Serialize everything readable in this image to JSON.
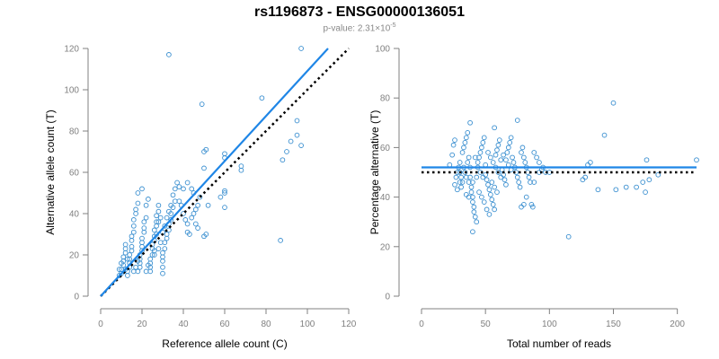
{
  "title": "rs1196873 - ENSG00000136051",
  "subtitle": {
    "prefix": "p-value: 2.31×10",
    "exponent": "-5"
  },
  "colors": {
    "points": "#3a8fd0",
    "fit_line": "#1f86e6",
    "reference_line": "#000000",
    "axes": "#808080"
  },
  "chart_data": [
    {
      "type": "scatter",
      "xlabel": "Reference allele count (C)",
      "ylabel": "Alternative allele count (T)",
      "xlim": [
        0,
        120
      ],
      "ylim": [
        0,
        120
      ],
      "xticks": [
        0,
        20,
        40,
        60,
        80,
        100,
        120
      ],
      "yticks": [
        0,
        20,
        40,
        60,
        80,
        100,
        120
      ],
      "grid": false,
      "fit_line": {
        "x": [
          0,
          110
        ],
        "y": [
          0,
          120
        ]
      },
      "reference_line": {
        "x": [
          0,
          120
        ],
        "y": [
          0,
          120
        ]
      },
      "points": [
        [
          33,
          117
        ],
        [
          97,
          120
        ],
        [
          95,
          85
        ],
        [
          95,
          78
        ],
        [
          97,
          73
        ],
        [
          92,
          75
        ],
        [
          88,
          66
        ],
        [
          90,
          70
        ],
        [
          78,
          96
        ],
        [
          87,
          27
        ],
        [
          49,
          93
        ],
        [
          50,
          70
        ],
        [
          51,
          71
        ],
        [
          50,
          62
        ],
        [
          51,
          30
        ],
        [
          50,
          29
        ],
        [
          52,
          44
        ],
        [
          60,
          51
        ],
        [
          60,
          50
        ],
        [
          58,
          48
        ],
        [
          60,
          43
        ],
        [
          68,
          63
        ],
        [
          68,
          61
        ],
        [
          60,
          67
        ],
        [
          60,
          69
        ],
        [
          45,
          40
        ],
        [
          46,
          42
        ],
        [
          47,
          44
        ],
        [
          48,
          48
        ],
        [
          44,
          52
        ],
        [
          45,
          50
        ],
        [
          42,
          55
        ],
        [
          40,
          52
        ],
        [
          38,
          53
        ],
        [
          38,
          46
        ],
        [
          39,
          44
        ],
        [
          40,
          40
        ],
        [
          41,
          37
        ],
        [
          42,
          35
        ],
        [
          42,
          31
        ],
        [
          43,
          30
        ],
        [
          44,
          38
        ],
        [
          46,
          35
        ],
        [
          47,
          33
        ],
        [
          36,
          46
        ],
        [
          35,
          43
        ],
        [
          34,
          40
        ],
        [
          34,
          37
        ],
        [
          33,
          35
        ],
        [
          33,
          32
        ],
        [
          32,
          30
        ],
        [
          32,
          28
        ],
        [
          31,
          26
        ],
        [
          31,
          23
        ],
        [
          30,
          21
        ],
        [
          30,
          19
        ],
        [
          30,
          17
        ],
        [
          30,
          14
        ],
        [
          30,
          11
        ],
        [
          28,
          44
        ],
        [
          28,
          41
        ],
        [
          27,
          39
        ],
        [
          27,
          36
        ],
        [
          27,
          34
        ],
        [
          26,
          32
        ],
        [
          26,
          29
        ],
        [
          26,
          27
        ],
        [
          25,
          25
        ],
        [
          25,
          23
        ],
        [
          25,
          20
        ],
        [
          24,
          18
        ],
        [
          24,
          16
        ],
        [
          24,
          14
        ],
        [
          24,
          12
        ],
        [
          23,
          47
        ],
        [
          22,
          44
        ],
        [
          22,
          38
        ],
        [
          21,
          36
        ],
        [
          21,
          33
        ],
        [
          21,
          31
        ],
        [
          20,
          28
        ],
        [
          20,
          26
        ],
        [
          20,
          24
        ],
        [
          20,
          22
        ],
        [
          19,
          20
        ],
        [
          19,
          18
        ],
        [
          19,
          16
        ],
        [
          19,
          14
        ],
        [
          18,
          12
        ],
        [
          20,
          52
        ],
        [
          18,
          50
        ],
        [
          18,
          45
        ],
        [
          17,
          42
        ],
        [
          17,
          40
        ],
        [
          16,
          37
        ],
        [
          16,
          34
        ],
        [
          16,
          31
        ],
        [
          15,
          29
        ],
        [
          15,
          27
        ],
        [
          15,
          24
        ],
        [
          15,
          22
        ],
        [
          14,
          20
        ],
        [
          14,
          18
        ],
        [
          14,
          16
        ],
        [
          14,
          14
        ],
        [
          13,
          12
        ],
        [
          13,
          10
        ],
        [
          12,
          25
        ],
        [
          12,
          23
        ],
        [
          12,
          21
        ],
        [
          11,
          19
        ],
        [
          11,
          17
        ],
        [
          11,
          15
        ],
        [
          10,
          13
        ],
        [
          10,
          11
        ],
        [
          10,
          16
        ],
        [
          9,
          13
        ],
        [
          9,
          10
        ],
        [
          22,
          12
        ],
        [
          23,
          15
        ],
        [
          17,
          14
        ],
        [
          18,
          17
        ],
        [
          16,
          12
        ],
        [
          12,
          13
        ],
        [
          13,
          18
        ],
        [
          26,
          20
        ],
        [
          28,
          23
        ],
        [
          29,
          26
        ],
        [
          30,
          31
        ],
        [
          31,
          34
        ],
        [
          32,
          38
        ],
        [
          33,
          41
        ],
        [
          34,
          44
        ],
        [
          35,
          49
        ],
        [
          36,
          52
        ],
        [
          37,
          55
        ],
        [
          29,
          38
        ],
        [
          28,
          36
        ],
        [
          27,
          30
        ],
        [
          26,
          22
        ]
      ]
    },
    {
      "type": "scatter",
      "xlabel": "Total number of reads",
      "ylabel": "Percentage alternative (T)",
      "xlim": [
        0,
        215
      ],
      "ylim": [
        0,
        100
      ],
      "xticks": [
        0,
        50,
        100,
        150,
        200
      ],
      "yticks": [
        0,
        20,
        40,
        60,
        80,
        100
      ],
      "grid": false,
      "fit_line": {
        "x": [
          0,
          215
        ],
        "y": [
          52,
          52
        ]
      },
      "reference_line": {
        "x": [
          0,
          215
        ],
        "y": [
          50,
          50
        ]
      },
      "points": [
        [
          150,
          78
        ],
        [
          143,
          65
        ],
        [
          75,
          71
        ],
        [
          57,
          68
        ],
        [
          38,
          70
        ],
        [
          22,
          53
        ],
        [
          24,
          57
        ],
        [
          25,
          61
        ],
        [
          26,
          63
        ],
        [
          27,
          48
        ],
        [
          28,
          50
        ],
        [
          29,
          52
        ],
        [
          30,
          54
        ],
        [
          30,
          46
        ],
        [
          31,
          44
        ],
        [
          32,
          58
        ],
        [
          33,
          60
        ],
        [
          34,
          62
        ],
        [
          35,
          64
        ],
        [
          36,
          66
        ],
        [
          37,
          56
        ],
        [
          38,
          52
        ],
        [
          38,
          48
        ],
        [
          39,
          44
        ],
        [
          39,
          42
        ],
        [
          40,
          40
        ],
        [
          40,
          38
        ],
        [
          41,
          36
        ],
        [
          41,
          34
        ],
        [
          42,
          32
        ],
        [
          40,
          26
        ],
        [
          43,
          30
        ],
        [
          44,
          54
        ],
        [
          45,
          56
        ],
        [
          46,
          58
        ],
        [
          47,
          60
        ],
        [
          48,
          62
        ],
        [
          49,
          64
        ],
        [
          50,
          53
        ],
        [
          50,
          49
        ],
        [
          51,
          47
        ],
        [
          52,
          45
        ],
        [
          53,
          43
        ],
        [
          54,
          41
        ],
        [
          55,
          39
        ],
        [
          56,
          37
        ],
        [
          57,
          35
        ],
        [
          58,
          57
        ],
        [
          59,
          59
        ],
        [
          60,
          61
        ],
        [
          61,
          63
        ],
        [
          62,
          55
        ],
        [
          63,
          51
        ],
        [
          64,
          49
        ],
        [
          65,
          47
        ],
        [
          66,
          45
        ],
        [
          67,
          58
        ],
        [
          68,
          60
        ],
        [
          69,
          62
        ],
        [
          70,
          64
        ],
        [
          71,
          56
        ],
        [
          72,
          54
        ],
        [
          73,
          52
        ],
        [
          74,
          50
        ],
        [
          75,
          48
        ],
        [
          76,
          46
        ],
        [
          77,
          44
        ],
        [
          78,
          58
        ],
        [
          79,
          60
        ],
        [
          80,
          56
        ],
        [
          81,
          54
        ],
        [
          82,
          52
        ],
        [
          83,
          50
        ],
        [
          84,
          48
        ],
        [
          85,
          46
        ],
        [
          86,
          37
        ],
        [
          87,
          36
        ],
        [
          88,
          58
        ],
        [
          90,
          56
        ],
        [
          92,
          54
        ],
        [
          30,
          50
        ],
        [
          31,
          48
        ],
        [
          32,
          46
        ],
        [
          33,
          52
        ],
        [
          34,
          50
        ],
        [
          35,
          48
        ],
        [
          36,
          54
        ],
        [
          37,
          46
        ],
        [
          42,
          56
        ],
        [
          44,
          52
        ],
        [
          46,
          50
        ],
        [
          48,
          48
        ],
        [
          52,
          58
        ],
        [
          54,
          56
        ],
        [
          56,
          54
        ],
        [
          58,
          52
        ],
        [
          60,
          50
        ],
        [
          62,
          48
        ],
        [
          64,
          57
        ],
        [
          66,
          55
        ],
        [
          68,
          53
        ],
        [
          70,
          51
        ],
        [
          45,
          42
        ],
        [
          47,
          40
        ],
        [
          49,
          38
        ],
        [
          51,
          35
        ],
        [
          53,
          33
        ],
        [
          55,
          46
        ],
        [
          57,
          44
        ],
        [
          59,
          42
        ],
        [
          115,
          24
        ],
        [
          126,
          47
        ],
        [
          128,
          48
        ],
        [
          130,
          53
        ],
        [
          132,
          54
        ],
        [
          138,
          43
        ],
        [
          152,
          43
        ],
        [
          160,
          44
        ],
        [
          168,
          44
        ],
        [
          175,
          42
        ],
        [
          178,
          47
        ],
        [
          173,
          46
        ],
        [
          185,
          49
        ],
        [
          176,
          55
        ],
        [
          215,
          55
        ],
        [
          97,
          50
        ],
        [
          94,
          51
        ],
        [
          95,
          52
        ],
        [
          92,
          50
        ],
        [
          26,
          45
        ],
        [
          28,
          43
        ],
        [
          35,
          41
        ],
        [
          37,
          40
        ],
        [
          40,
          46
        ],
        [
          43,
          48
        ],
        [
          78,
          36
        ],
        [
          80,
          37
        ],
        [
          82,
          40
        ],
        [
          88,
          46
        ],
        [
          100,
          50
        ]
      ]
    }
  ]
}
